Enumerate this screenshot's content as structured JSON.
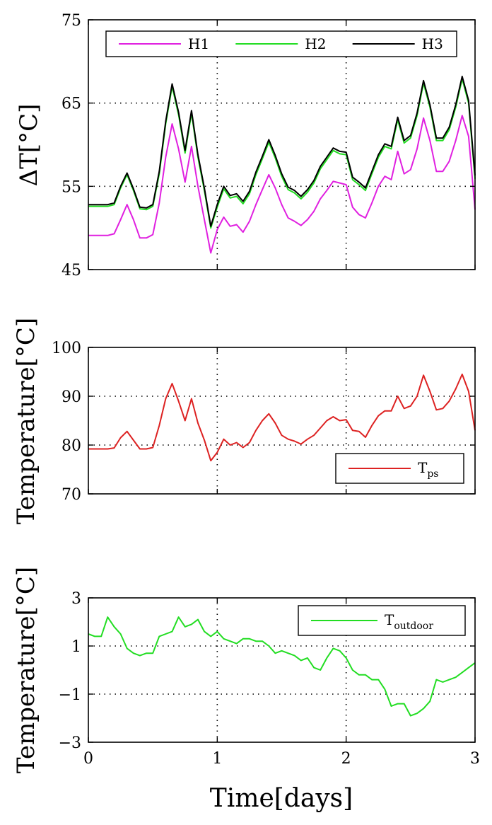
{
  "figure": {
    "xlabel": "Time[days]",
    "xticks": [
      "0",
      "1",
      "2",
      "3"
    ]
  },
  "chart_data": [
    {
      "type": "line",
      "ylabel": "ΔT[°C]",
      "ylim": [
        45,
        75
      ],
      "yticks": [
        "45",
        "55",
        "65",
        "75"
      ],
      "xlim": [
        0,
        3
      ],
      "grid": true,
      "legend_position": "top",
      "x": [
        0,
        0.05,
        0.1,
        0.15,
        0.2,
        0.25,
        0.3,
        0.35,
        0.4,
        0.45,
        0.5,
        0.55,
        0.6,
        0.65,
        0.7,
        0.75,
        0.8,
        0.85,
        0.9,
        0.95,
        1.0,
        1.05,
        1.1,
        1.15,
        1.2,
        1.25,
        1.3,
        1.35,
        1.4,
        1.45,
        1.5,
        1.55,
        1.6,
        1.65,
        1.7,
        1.75,
        1.8,
        1.85,
        1.9,
        1.95,
        2.0,
        2.05,
        2.1,
        2.15,
        2.2,
        2.25,
        2.3,
        2.35,
        2.4,
        2.45,
        2.5,
        2.55,
        2.6,
        2.65,
        2.7,
        2.75,
        2.8,
        2.85,
        2.9,
        2.95,
        3.0
      ],
      "series": [
        {
          "name": "H1",
          "color": "#e020e0",
          "values": [
            49.1,
            49.1,
            49.1,
            49.1,
            49.3,
            51.0,
            52.8,
            51.0,
            48.8,
            48.8,
            49.2,
            53.0,
            58.5,
            62.5,
            59.5,
            55.5,
            59.8,
            55.0,
            51.0,
            47.0,
            49.8,
            51.3,
            50.2,
            50.4,
            49.5,
            50.8,
            52.8,
            54.6,
            56.4,
            54.8,
            52.8,
            51.2,
            50.8,
            50.3,
            51.0,
            52.0,
            53.5,
            54.5,
            55.6,
            55.4,
            55.2,
            52.5,
            51.6,
            51.2,
            53.0,
            55.0,
            56.2,
            55.8,
            59.2,
            56.5,
            57.0,
            59.5,
            63.2,
            60.5,
            56.8,
            56.8,
            58.0,
            60.5,
            63.5,
            61.0,
            52.2
          ]
        },
        {
          "name": "H2",
          "color": "#22dd22",
          "values": [
            52.6,
            52.6,
            52.6,
            52.6,
            52.8,
            54.8,
            56.4,
            54.5,
            52.3,
            52.2,
            52.6,
            56.5,
            62.5,
            67.0,
            63.6,
            59.0,
            63.8,
            58.5,
            54.5,
            50.0,
            52.5,
            54.7,
            53.6,
            53.8,
            52.9,
            54.1,
            56.4,
            58.3,
            60.3,
            58.4,
            56.2,
            54.6,
            54.2,
            53.5,
            54.3,
            55.4,
            57.1,
            58.2,
            59.3,
            58.9,
            58.8,
            55.8,
            55.2,
            54.5,
            56.5,
            58.5,
            59.8,
            59.5,
            63.0,
            60.2,
            60.8,
            63.5,
            67.4,
            64.5,
            60.5,
            60.5,
            61.8,
            64.5,
            67.9,
            65.0,
            55.9
          ]
        },
        {
          "name": "H3",
          "color": "#000000",
          "values": [
            52.8,
            52.8,
            52.8,
            52.8,
            53.0,
            55.0,
            56.6,
            54.7,
            52.5,
            52.4,
            52.8,
            56.8,
            62.8,
            67.3,
            63.9,
            59.3,
            64.1,
            58.8,
            54.8,
            50.2,
            52.8,
            55.0,
            53.9,
            54.1,
            53.2,
            54.4,
            56.7,
            58.6,
            60.6,
            58.7,
            56.5,
            54.9,
            54.5,
            53.8,
            54.6,
            55.7,
            57.4,
            58.5,
            59.6,
            59.2,
            59.1,
            56.1,
            55.5,
            54.8,
            56.8,
            58.8,
            60.1,
            59.8,
            63.3,
            60.5,
            61.1,
            63.8,
            67.7,
            64.8,
            60.8,
            60.8,
            62.1,
            64.8,
            68.2,
            65.3,
            56.3
          ]
        }
      ]
    },
    {
      "type": "line",
      "ylabel": "Temperature[°C]",
      "ylim": [
        70,
        100
      ],
      "yticks": [
        "70",
        "80",
        "90",
        "100"
      ],
      "xlim": [
        0,
        3
      ],
      "grid": true,
      "legend_position": "bottom-right",
      "x": [
        0,
        0.05,
        0.1,
        0.15,
        0.2,
        0.25,
        0.3,
        0.35,
        0.4,
        0.45,
        0.5,
        0.55,
        0.6,
        0.65,
        0.7,
        0.75,
        0.8,
        0.85,
        0.9,
        0.95,
        1.0,
        1.05,
        1.1,
        1.15,
        1.2,
        1.25,
        1.3,
        1.35,
        1.4,
        1.45,
        1.5,
        1.55,
        1.6,
        1.65,
        1.7,
        1.75,
        1.8,
        1.85,
        1.9,
        1.95,
        2.0,
        2.05,
        2.1,
        2.15,
        2.2,
        2.25,
        2.3,
        2.35,
        2.4,
        2.45,
        2.5,
        2.55,
        2.6,
        2.65,
        2.7,
        2.75,
        2.8,
        2.85,
        2.9,
        2.95,
        3.0
      ],
      "series": [
        {
          "name": "T",
          "name_subscript": "ps",
          "color": "#dd2222",
          "values": [
            79.2,
            79.2,
            79.2,
            79.2,
            79.4,
            81.5,
            82.8,
            81.0,
            79.2,
            79.2,
            79.5,
            84.0,
            89.5,
            92.6,
            89.0,
            85.0,
            89.5,
            84.5,
            81.0,
            76.8,
            78.5,
            81.2,
            80.0,
            80.5,
            79.5,
            80.5,
            83.0,
            85.0,
            86.4,
            84.5,
            82.0,
            81.2,
            80.8,
            80.2,
            81.2,
            82.0,
            83.5,
            85.0,
            85.8,
            85.0,
            85.2,
            83.0,
            82.8,
            81.6,
            84.0,
            86.0,
            87.0,
            87.0,
            90.0,
            87.5,
            88.0,
            90.0,
            94.3,
            91.0,
            87.2,
            87.5,
            89.0,
            91.5,
            94.5,
            91.0,
            83.0
          ]
        }
      ]
    },
    {
      "type": "line",
      "ylabel": "Temperature[°C]",
      "ylim": [
        -3,
        3
      ],
      "yticks": [
        "−3",
        "−1",
        "1",
        "3"
      ],
      "xlim": [
        0,
        3
      ],
      "grid": true,
      "legend_position": "top-right",
      "x": [
        0,
        0.05,
        0.1,
        0.15,
        0.2,
        0.25,
        0.3,
        0.35,
        0.4,
        0.45,
        0.5,
        0.55,
        0.6,
        0.65,
        0.7,
        0.75,
        0.8,
        0.85,
        0.9,
        0.95,
        1.0,
        1.05,
        1.1,
        1.15,
        1.2,
        1.25,
        1.3,
        1.35,
        1.4,
        1.45,
        1.5,
        1.55,
        1.6,
        1.65,
        1.7,
        1.75,
        1.8,
        1.85,
        1.9,
        1.95,
        2.0,
        2.05,
        2.1,
        2.15,
        2.2,
        2.25,
        2.3,
        2.35,
        2.4,
        2.45,
        2.5,
        2.55,
        2.6,
        2.65,
        2.7,
        2.75,
        2.8,
        2.85,
        2.9,
        2.95,
        3.0
      ],
      "series": [
        {
          "name": "T",
          "name_subscript": "outdoor",
          "color": "#22dd22",
          "values": [
            1.5,
            1.4,
            1.4,
            2.2,
            1.8,
            1.5,
            0.9,
            0.7,
            0.6,
            0.7,
            0.7,
            1.4,
            1.5,
            1.6,
            2.2,
            1.8,
            1.9,
            2.1,
            1.6,
            1.4,
            1.6,
            1.3,
            1.2,
            1.1,
            1.3,
            1.3,
            1.2,
            1.2,
            1.0,
            0.7,
            0.8,
            0.7,
            0.6,
            0.4,
            0.5,
            0.1,
            0.0,
            0.5,
            0.9,
            0.8,
            0.5,
            0.0,
            -0.2,
            -0.2,
            -0.4,
            -0.4,
            -0.8,
            -1.5,
            -1.4,
            -1.4,
            -1.9,
            -1.8,
            -1.6,
            -1.3,
            -0.4,
            -0.5,
            -0.4,
            -0.3,
            -0.1,
            0.1,
            0.3
          ]
        }
      ]
    }
  ]
}
